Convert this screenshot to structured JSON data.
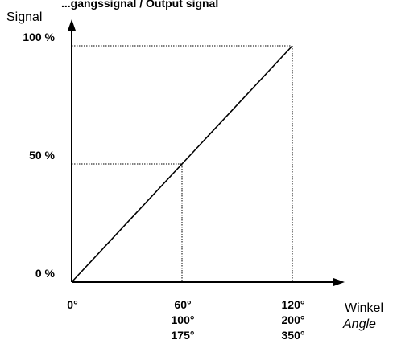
{
  "chart_data": {
    "type": "line",
    "title_fragment": "...gangssignal / Output signal",
    "ylabel": "Signal",
    "xlabel": "Winkel",
    "xlabel_alt": "Angle",
    "x_ticks": [
      {
        "value": 0,
        "labels": [
          "0°"
        ]
      },
      {
        "value": 60,
        "labels": [
          "60°",
          "100°",
          "175°"
        ]
      },
      {
        "value": 120,
        "labels": [
          "120°",
          "200°",
          "350°"
        ]
      }
    ],
    "y_ticks": [
      {
        "value": 0,
        "label": "0 %"
      },
      {
        "value": 50,
        "label": "50 %"
      },
      {
        "value": 100,
        "label": "100 %"
      }
    ],
    "series": [
      {
        "x": [
          0,
          60,
          120
        ],
        "y": [
          0,
          50,
          100
        ]
      }
    ],
    "guides": [
      {
        "x": 60,
        "y": 50
      },
      {
        "x": 120,
        "y": 100
      }
    ],
    "xlim": [
      0,
      120
    ],
    "ylim": [
      0,
      100
    ],
    "grid": false,
    "colors": {
      "line": "#000000",
      "axis": "#000000",
      "guide": "#000000"
    }
  }
}
